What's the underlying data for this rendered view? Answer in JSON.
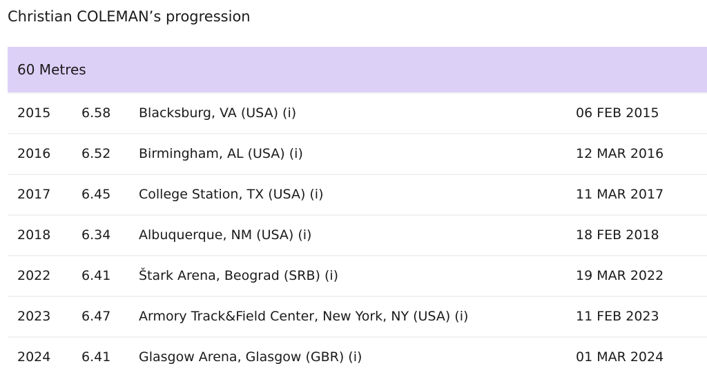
{
  "header": {
    "title": "Christian COLEMAN’s progression"
  },
  "table": {
    "event": "60 Metres",
    "rows": [
      [
        "2015",
        "6.58",
        "Blacksburg, VA (USA) (i)",
        "06 FEB 2015"
      ],
      [
        "2016",
        "6.52",
        "Birmingham, AL (USA) (i)",
        "12 MAR 2016"
      ],
      [
        "2017",
        "6.45",
        "College Station, TX (USA) (i)",
        "11 MAR 2017"
      ],
      [
        "2018",
        "6.34",
        "Albuquerque, NM (USA) (i)",
        "18 FEB 2018"
      ],
      [
        "2022",
        "6.41",
        "Štark Arena, Beograd (SRB) (i)",
        "19 MAR 2022"
      ],
      [
        "2023",
        "6.47",
        "Armory Track&Field Center, New York, NY (USA) (i)",
        "11 FEB 2023"
      ],
      [
        "2024",
        "6.41",
        "Glasgow Arena, Glasgow (GBR) (i)",
        "01 MAR 2024"
      ]
    ]
  }
}
